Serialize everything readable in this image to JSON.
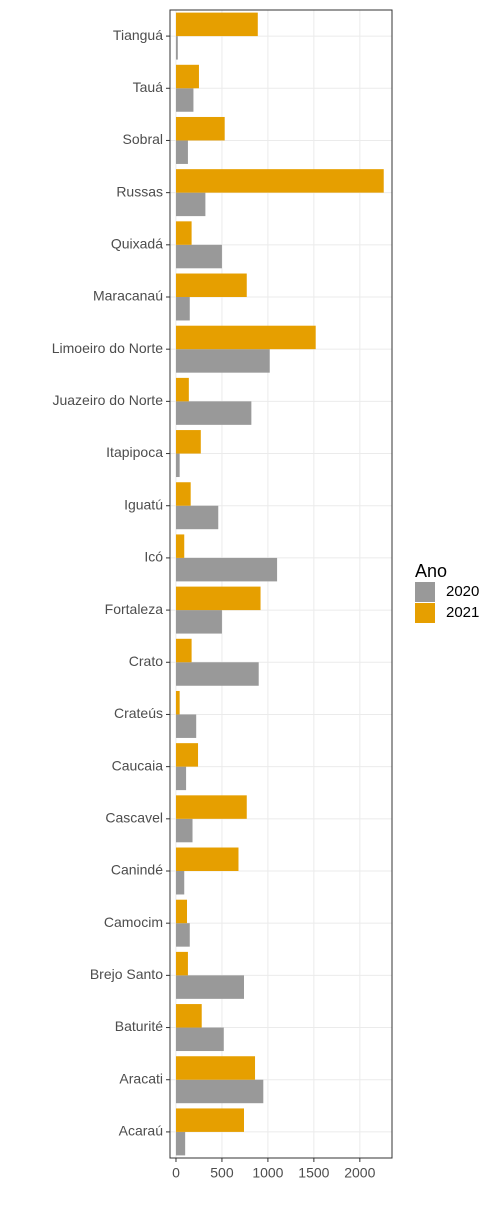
{
  "chart_data": {
    "type": "hbar",
    "categories": [
      "Acaraú",
      "Aracati",
      "Baturité",
      "Brejo Santo",
      "Camocim",
      "Canindé",
      "Cascavel",
      "Caucaia",
      "Crateús",
      "Crato",
      "Fortaleza",
      "Icó",
      "Iguatú",
      "Itapipoca",
      "Juazeiro do Norte",
      "Limoeiro do Norte",
      "Maracanaú",
      "Quixadá",
      "Russas",
      "Sobral",
      "Tauá",
      "Tianguá"
    ],
    "series": [
      {
        "name": "2020",
        "color": "#999999",
        "values": [
          100,
          950,
          520,
          740,
          150,
          90,
          180,
          110,
          220,
          900,
          500,
          1100,
          460,
          40,
          820,
          1020,
          150,
          500,
          320,
          130,
          190,
          20
        ]
      },
      {
        "name": "2021",
        "color": "#E69F00",
        "values": [
          740,
          860,
          280,
          130,
          120,
          680,
          770,
          240,
          40,
          170,
          920,
          90,
          160,
          270,
          140,
          1520,
          770,
          170,
          2260,
          530,
          250,
          890
        ]
      }
    ],
    "xlim": [
      -65,
      2350
    ],
    "xticks": [
      0,
      500,
      1000,
      1500,
      2000
    ],
    "grid": true,
    "legend_title": "Ano",
    "legend": "right"
  }
}
